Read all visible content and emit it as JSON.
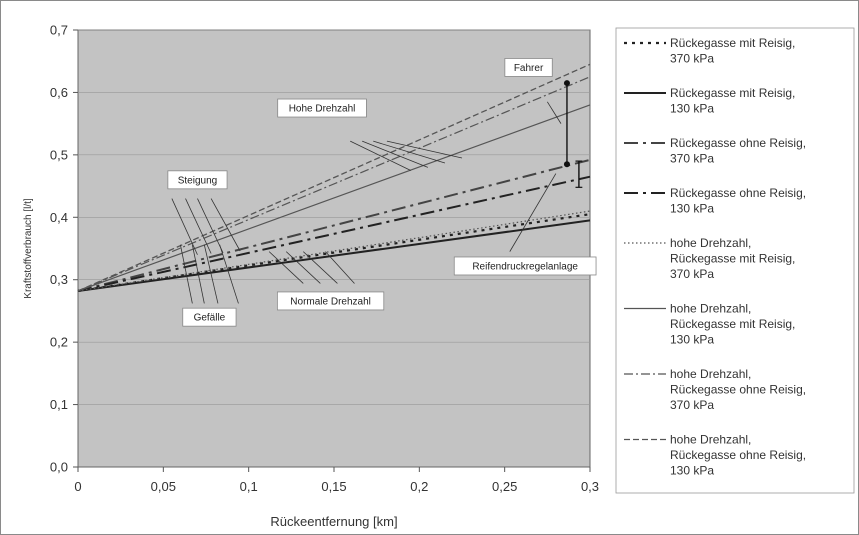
{
  "chart_data": {
    "type": "line",
    "xlabel": "Rückeentfernung [km]",
    "ylabel": "Kraftstoffverbrauch [l/t]",
    "xlim": [
      0,
      0.3
    ],
    "ylim": [
      0,
      0.7
    ],
    "xticks": [
      "0",
      "0,05",
      "0,1",
      "0,15",
      "0,2",
      "0,25",
      "0,3"
    ],
    "yticks": [
      "0,0",
      "0,1",
      "0,2",
      "0,3",
      "0,4",
      "0,5",
      "0,6",
      "0,7"
    ],
    "grid": false,
    "legend_position": "right",
    "series": [
      {
        "name": "Rückegasse mit Reisig, 370 kPa",
        "style": "dotted-bold",
        "color": "#222222",
        "x": [
          0,
          0.3
        ],
        "y": [
          0.282,
          0.405
        ]
      },
      {
        "name": "Rückegasse mit Reisig, 130 kPa",
        "style": "solid-bold",
        "color": "#222222",
        "x": [
          0,
          0.3
        ],
        "y": [
          0.282,
          0.395
        ]
      },
      {
        "name": "Rückegasse ohne Reisig, 370 kPa",
        "style": "dashdot-bold",
        "color": "#444444",
        "x": [
          0,
          0.3
        ],
        "y": [
          0.282,
          0.492
        ]
      },
      {
        "name": "Rückegasse ohne Reisig, 130 kPa",
        "style": "dashdot-bold",
        "color": "#222222",
        "x": [
          0,
          0.3
        ],
        "y": [
          0.282,
          0.465
        ]
      },
      {
        "name": "hohe Drehzahl, Rückegasse mit Reisig, 370 kPa",
        "style": "dotted-thin",
        "color": "#555555",
        "x": [
          0,
          0.3
        ],
        "y": [
          0.282,
          0.41
        ]
      },
      {
        "name": "hohe Drehzahl, Rückegasse mit Reisig, 130 kPa",
        "style": "solid-thin",
        "color": "#555555",
        "x": [
          0,
          0.3
        ],
        "y": [
          0.282,
          0.58
        ]
      },
      {
        "name": "hohe Drehzahl, Rückegasse ohne Reisig, 370 kPa",
        "style": "dashdot-thin",
        "color": "#555555",
        "x": [
          0,
          0.3
        ],
        "y": [
          0.282,
          0.625
        ]
      },
      {
        "name": "hohe Drehzahl, Rückegasse ohne Reisig, 130 kPa",
        "style": "dashed-thin",
        "color": "#555555",
        "x": [
          0,
          0.3
        ],
        "y": [
          0.282,
          0.645
        ]
      }
    ],
    "annotations": [
      {
        "text": "Hohe Drehzahl",
        "x": 0.143,
        "y": 0.575
      },
      {
        "text": "Steigung",
        "x": 0.07,
        "y": 0.46
      },
      {
        "text": "Gefälle",
        "x": 0.077,
        "y": 0.24
      },
      {
        "text": "Normale Drehzahl",
        "x": 0.148,
        "y": 0.266
      },
      {
        "text": "Fahrer",
        "x": 0.264,
        "y": 0.64
      },
      {
        "text": "Reifendruckregelanlage",
        "x": 0.262,
        "y": 0.322
      }
    ]
  }
}
